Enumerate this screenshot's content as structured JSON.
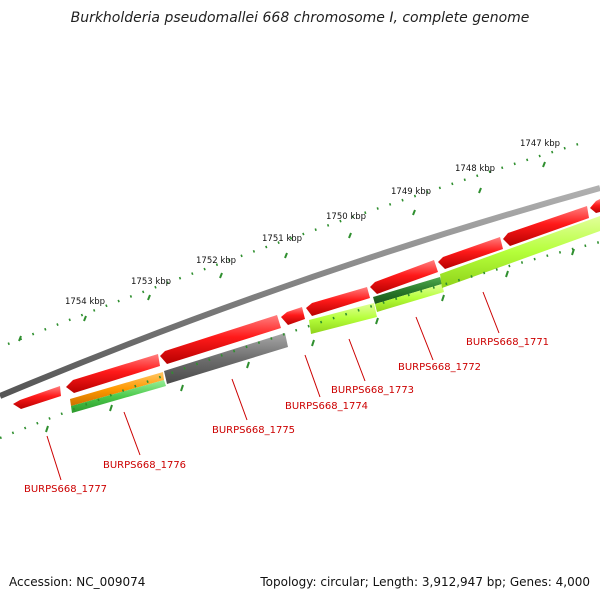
{
  "title": "Burkholderia pseudomallei 668 chromosome I, complete genome",
  "footer": {
    "accession": "Accession: NC_009074",
    "summary": "Topology: circular; Length: 3,912,947 bp; Genes: 4,000"
  },
  "colors": {
    "gene_red": "#ff1a1a",
    "gene_orange": "#ff9900",
    "gene_green": "#4cc94c",
    "gene_dark_green": "#2a7a2a",
    "gene_lime": "#b5ff3a",
    "gene_gray": "#6e6e6e",
    "backbone": "#808080",
    "tick_green": "#2f8f2f",
    "label_red": "#cc0000"
  },
  "scale_labels": [
    "1754 kbp",
    "1753 kbp",
    "1752 kbp",
    "1751 kbp",
    "1750 kbp",
    "1749 kbp",
    "1748 kbp",
    "1747 kbp"
  ],
  "gene_labels": [
    "BURPS668_1777",
    "BURPS668_1776",
    "BURPS668_1775",
    "BURPS668_1774",
    "BURPS668_1773",
    "BURPS668_1772",
    "BURPS668_1771"
  ]
}
